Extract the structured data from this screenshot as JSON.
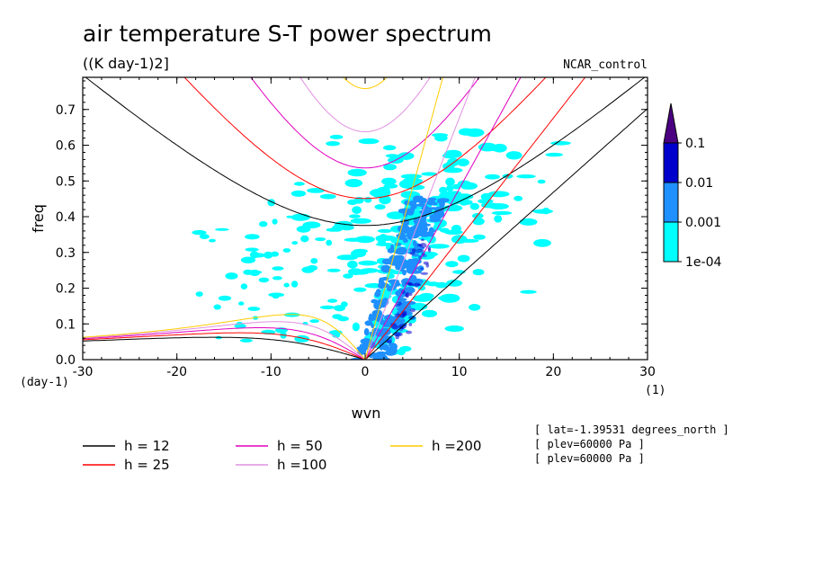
{
  "chart_data": {
    "type": "heatmap",
    "title": "air temperature S-T power spectrum",
    "subtitle": "((K day-1)2]",
    "run_label": "NCAR_control",
    "xlabel": "wvn",
    "ylabel": "freq",
    "x_unit": "(1)",
    "y_unit": "(day-1)",
    "xlim": [
      -30,
      30
    ],
    "ylim": [
      0,
      0.79
    ],
    "x_ticks": [
      -30,
      -20,
      -10,
      0,
      10,
      20,
      30
    ],
    "x_tick_labels": [
      "-30",
      "-20",
      "-10",
      "0",
      "10",
      "20",
      "30"
    ],
    "y_ticks": [
      0,
      0.1,
      0.2,
      0.3,
      0.4,
      0.5,
      0.6,
      0.7
    ],
    "y_tick_labels": [
      "0.0",
      "0.1",
      "0.2",
      "0.3",
      "0.4",
      "0.5",
      "0.6",
      "0.7"
    ],
    "colorbar": {
      "levels": [
        "1e-04",
        "0.001",
        "0.01",
        "0.1"
      ],
      "colors": [
        "#00ffff",
        "#1e90ff",
        "#0000cd",
        "#4b0082"
      ]
    },
    "colors": {
      "contour_low": "#00ffff",
      "contour_mid": "#1e90ff",
      "contour_high": "#0000cd"
    },
    "dispersion_curves": [
      {
        "name": "h = 12",
        "depth_m": 12,
        "color": "#000000"
      },
      {
        "name": "h = 25",
        "depth_m": 25,
        "color": "#ff0000"
      },
      {
        "name": "h = 50",
        "depth_m": 50,
        "color": "#e000c0"
      },
      {
        "name": "h =100",
        "depth_m": 100,
        "color": "#e090e0"
      },
      {
        "name": "h =200",
        "depth_m": 200,
        "color": "#ffcc00"
      }
    ],
    "info_lines": [
      "[ lat=-1.39531 degrees_north ]",
      "[ plev=60000 Pa ]",
      "[ plev=60000 Pa ]"
    ]
  }
}
